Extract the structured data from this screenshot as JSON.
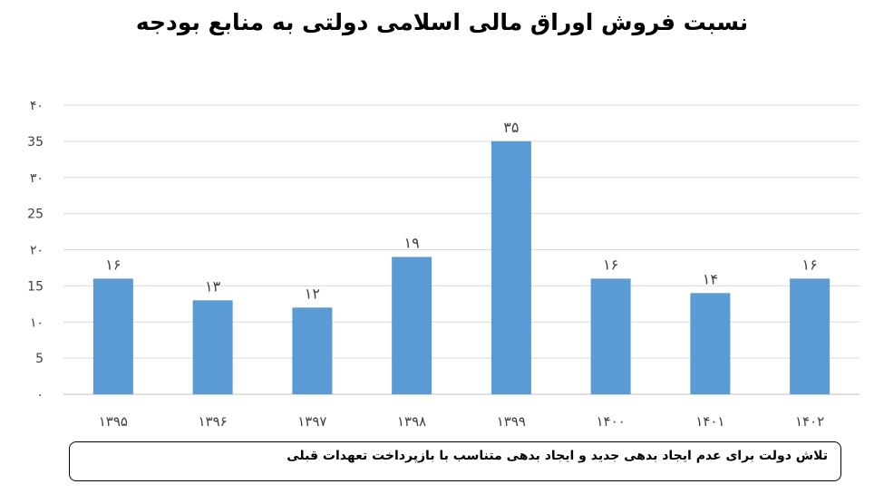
{
  "title": "نسبت فروش اوراق مالی اسلامی دولتی به منابع بودجه",
  "note": "تلاش دولت برای عدم ایجاد بدهی جدید و ایجاد بدهی متناسب با بازپرداخت تعهدات قبلی",
  "colors": {
    "bar": "#5b9bd5",
    "grid": "#d9d9d9",
    "axis": "#bfbfbf",
    "text": "#404040"
  },
  "chart_data": {
    "type": "bar",
    "title": "نسبت فروش اوراق مالی اسلامی دولتی به منابع بودجه",
    "categories": [
      "۱۳۹۵",
      "۱۳۹۶",
      "۱۳۹۷",
      "۱۳۹۸",
      "۱۳۹۹",
      "۱۴۰۰",
      "۱۴۰۱",
      "۱۴۰۲"
    ],
    "values": [
      16,
      13,
      12,
      19,
      35,
      16,
      14,
      16
    ],
    "value_labels": [
      "۱۶",
      "۱۳",
      "۱۲",
      "۱۹",
      "۳۵",
      "۱۶",
      "۱۴",
      "۱۶"
    ],
    "ylim": [
      0,
      40
    ],
    "y_ticks": [
      0,
      5,
      10,
      15,
      20,
      25,
      30,
      35,
      40
    ],
    "y_tick_labels": [
      "۰",
      "5",
      "۱۰",
      "15",
      "۲۰",
      "25",
      "۳۰",
      "35",
      "۴۰"
    ],
    "grid": true,
    "xlabel": "",
    "ylabel": ""
  }
}
